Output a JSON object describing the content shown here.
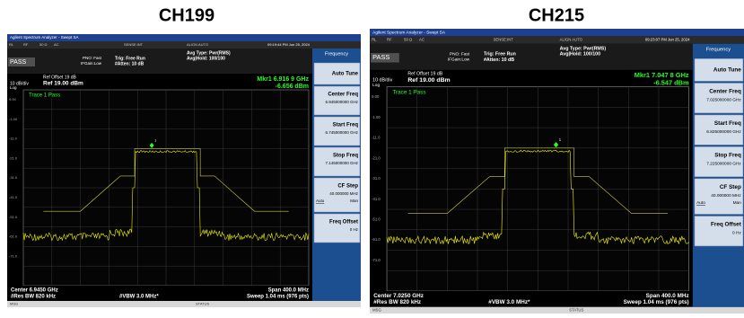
{
  "panels": [
    {
      "title": "CH199",
      "window_title": "Agilent Spectrum Analyzer - Swept SA",
      "status_tabs": [
        "RL",
        "RF",
        "50 Ω",
        "AC",
        "SENSE:INT",
        "ALIGN AUTO"
      ],
      "datetime": "09:19:44 PM Jun 25, 2024",
      "pass": "PASS",
      "pno": "PNO: Fast",
      "ifgain": "IFGain:Low",
      "trig": "Trig: Free Run",
      "atten": "#Atten: 10 dB",
      "avg_type": "Avg Type: Pwr(RMS)",
      "avg_hold": "Avg|Hold: 100/100",
      "ref_offset": "Ref Offset 19 dB",
      "scale": "10 dB/div",
      "ref": "Ref 19.00 dBm",
      "log": "Log",
      "marker_freq": "Mkr1 6.916 9 GHz",
      "marker_level": "-6.656 dBm",
      "trace_status": "Trace 1 Pass",
      "marker_label": "1",
      "y_labels": [
        "9.00",
        "-1.00",
        "-11.0",
        "-21.0",
        "-31.0",
        "-41.0",
        "-51.0",
        "-61.0",
        "-71.0"
      ],
      "center": "Center 6.9450 GHz",
      "span": "Span 400.0 MHz",
      "rbw": "#Res BW 820 kHz",
      "vbw": "#VBW 3.0 MHz*",
      "sweep": "Sweep  1.04 ms (976 pts)",
      "msg": "MSG",
      "status": "STATUS",
      "menu": {
        "title": "Frequency",
        "buttons": [
          {
            "label": "Auto Tune"
          },
          {
            "label": "Center Freq",
            "value": "6.945000000 GHz"
          },
          {
            "label": "Start Freq",
            "value": "6.745000000 GHz"
          },
          {
            "label": "Stop Freq",
            "value": "7.145000000 GHz"
          },
          {
            "label": "CF Step",
            "value": "40.000000 MHz",
            "auto": "Auto",
            "man": "Man"
          },
          {
            "label": "Freq Offset",
            "value": "0 Hz"
          }
        ]
      }
    },
    {
      "title": "CH215",
      "window_title": "Agilent Spectrum Analyzer - Swept SA",
      "status_tabs": [
        "RL",
        "RF",
        "50 Ω",
        "AC",
        "SENSE:INT",
        "ALIGN AUTO"
      ],
      "datetime": "09:23:07 PM Jun 25, 2024",
      "pass": "PASS",
      "pno": "PNO: Fast",
      "ifgain": "IFGain:Low",
      "trig": "Trig: Free Run",
      "atten": "#Atten: 10 dB",
      "avg_type": "Avg Type: Pwr(RMS)",
      "avg_hold": "Avg|Hold: 100/100",
      "ref_offset": "Ref Offset 19 dB",
      "scale": "10 dB/div",
      "ref": "Ref 19.00 dBm",
      "log": "Log",
      "marker_freq": "Mkr1 7.047 8 GHz",
      "marker_level": "-6.547 dBm",
      "trace_status": "Trace 1 Pass",
      "marker_label": "1",
      "y_labels": [
        "9.00",
        "-1.00",
        "-11.0",
        "-21.0",
        "-31.0",
        "-41.0",
        "-51.0",
        "-61.0",
        "-71.0"
      ],
      "center": "Center 7.0250 GHz",
      "span": "Span 400.0 MHz",
      "rbw": "#Res BW 820 kHz",
      "vbw": "#VBW 3.0 MHz*",
      "sweep": "Sweep  1.04 ms (976 pts)",
      "msg": "MSG",
      "status": "STATUS",
      "menu": {
        "title": "Frequency",
        "buttons": [
          {
            "label": "Auto Tune"
          },
          {
            "label": "Center Freq",
            "value": "7.025000000 GHz"
          },
          {
            "label": "Start Freq",
            "value": "6.825000000 GHz"
          },
          {
            "label": "Stop Freq",
            "value": "7.225000000 GHz"
          },
          {
            "label": "CF Step",
            "value": "40.000000 MHz",
            "auto": "Auto",
            "man": "Man"
          },
          {
            "label": "Freq Offset",
            "value": "0 Hz"
          }
        ]
      }
    }
  ]
}
